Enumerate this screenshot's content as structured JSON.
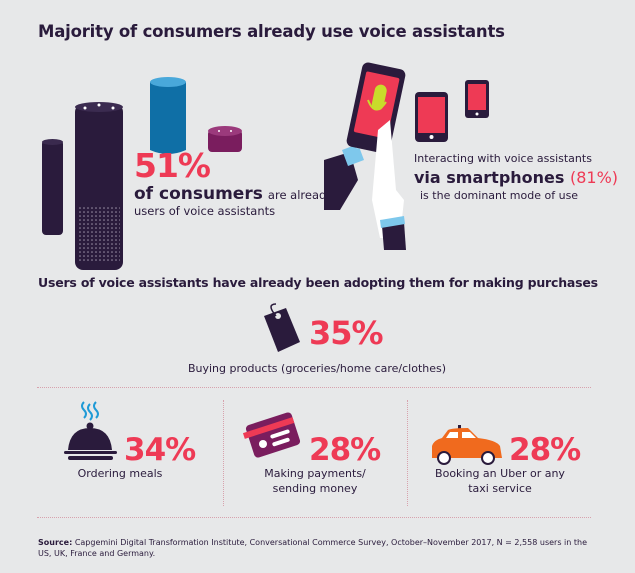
{
  "title": "Majority of consumers already use voice assistants",
  "stat_consumers": {
    "value": "51%",
    "bold": "of consumers",
    "rest": "are already",
    "line2": "users of voice assistants"
  },
  "stat_smartphones": {
    "line1": "Interacting with voice assistants",
    "bold": "via smartphones",
    "value": "(81%)",
    "line3": "is the dominant mode of use"
  },
  "section_title": "Users of voice assistants have already been adopting them for making purchases",
  "purchases": [
    {
      "icon": "price-tag-icon",
      "value": "35%",
      "label": "Buying products (groceries/home care/clothes)"
    },
    {
      "icon": "food-cloche-icon",
      "value": "34%",
      "label": "Ordering meals"
    },
    {
      "icon": "credit-card-icon",
      "value": "28%",
      "label_lines": [
        "Making payments/",
        "sending money"
      ]
    },
    {
      "icon": "taxi-car-icon",
      "value": "28%",
      "label_lines": [
        "Booking an Uber or any",
        "taxi service"
      ]
    }
  ],
  "source": {
    "label": "Source:",
    "text": "Capgemini Digital Transformation Institute, Conversational Commerce Survey, October–November 2017, N = 2,558 users in the US, UK, France and Germany."
  },
  "colors": {
    "accent": "#ee3a55",
    "dark": "#2a1b3c",
    "background": "#e7e8e9"
  }
}
